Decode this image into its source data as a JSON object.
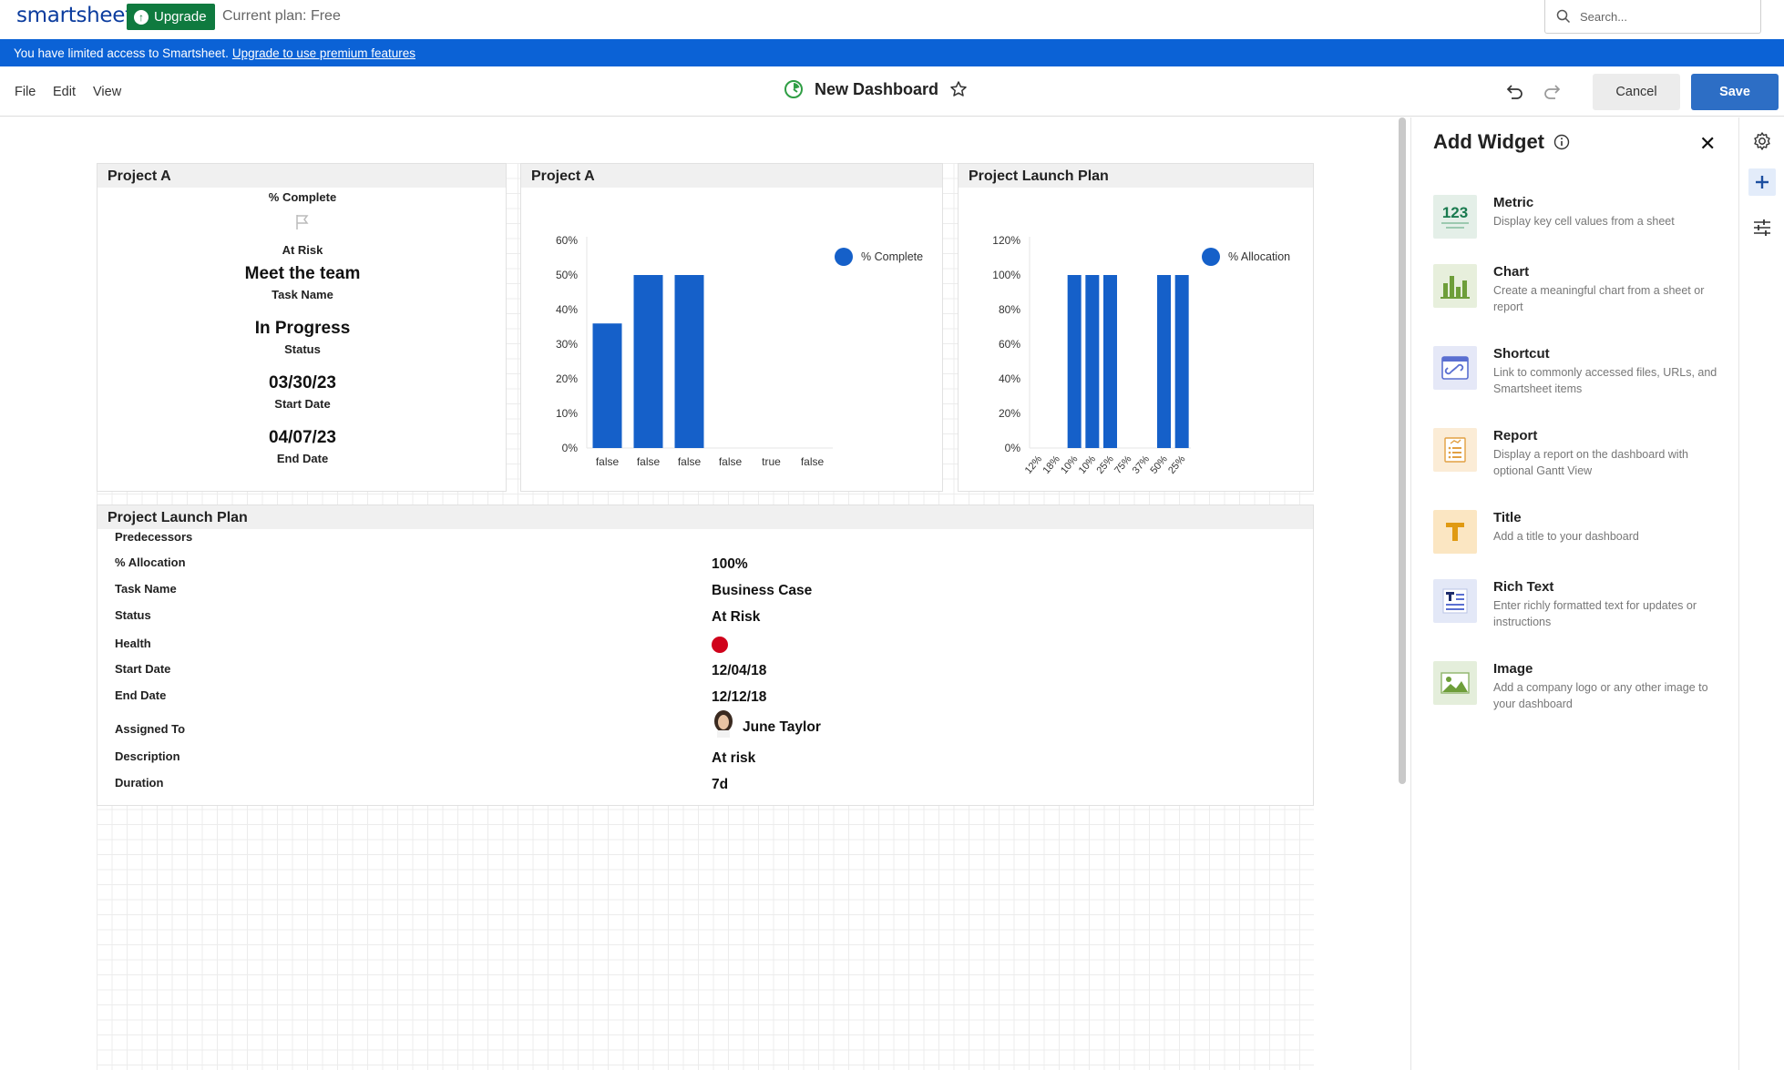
{
  "topbar": {
    "logo": "smartsheet",
    "upgrade_label": "Upgrade",
    "plan_text": "Current plan: Free",
    "search_placeholder": "Search..."
  },
  "banner": {
    "text": "You have limited access to Smartsheet.",
    "link": "Upgrade to use premium features",
    "color": "#0b62d6"
  },
  "menubar": {
    "items": [
      "File",
      "Edit",
      "View"
    ],
    "dashboard_title": "New Dashboard",
    "cancel_label": "Cancel",
    "save_label": "Save"
  },
  "widgets": {
    "metric": {
      "header": "Project A",
      "rows": [
        {
          "value": "",
          "label": "% Complete"
        },
        {
          "value": "",
          "label": "At Risk"
        },
        {
          "value": "Meet the team",
          "label": "Task Name"
        },
        {
          "value": "In Progress",
          "label": "Status"
        },
        {
          "value": "03/30/23",
          "label": "Start Date"
        },
        {
          "value": "04/07/23",
          "label": "End Date"
        }
      ]
    },
    "chart1": {
      "header": "Project A"
    },
    "chart2": {
      "header": "Project Launch Plan"
    },
    "row": {
      "header": "Project Launch Plan",
      "fields": [
        {
          "label": "Predecessors",
          "value": ""
        },
        {
          "label": "% Allocation",
          "value": "100%"
        },
        {
          "label": "Task Name",
          "value": "Business Case"
        },
        {
          "label": "Status",
          "value": "At Risk"
        },
        {
          "label": "Health",
          "value": ""
        },
        {
          "label": "Start Date",
          "value": "12/04/18"
        },
        {
          "label": "End Date",
          "value": "12/12/18"
        },
        {
          "label": "Assigned To",
          "value": "June Taylor"
        },
        {
          "label": "Description",
          "value": "At risk"
        },
        {
          "label": "Duration",
          "value": "7d"
        }
      ],
      "health_color": "#d0021b"
    }
  },
  "chart_data": [
    {
      "type": "bar",
      "categories": [
        "false",
        "false",
        "false",
        "false",
        "true",
        "false"
      ],
      "series": [
        {
          "name": "% Complete",
          "values": [
            36,
            50,
            50,
            0,
            0,
            0
          ]
        }
      ],
      "yticks": [
        "0%",
        "10%",
        "20%",
        "30%",
        "40%",
        "50%",
        "60%"
      ],
      "ylim": [
        0,
        60
      ],
      "legend": "top-right",
      "color": "#1560c9"
    },
    {
      "type": "bar",
      "categories": [
        "12%",
        "18%",
        "10%",
        "10%",
        "25%",
        "75%",
        "37%",
        "50%",
        "25%"
      ],
      "series": [
        {
          "name": "% Allocation",
          "values": [
            0,
            0,
            100,
            100,
            100,
            0,
            0,
            100,
            100
          ]
        }
      ],
      "yticks": [
        "0%",
        "20%",
        "40%",
        "60%",
        "80%",
        "100%",
        "120%"
      ],
      "ylim": [
        0,
        120
      ],
      "legend": "top-right",
      "color": "#1560c9"
    }
  ],
  "panel": {
    "title": "Add Widget",
    "items": [
      {
        "name": "Metric",
        "desc": "Display key cell values from a sheet",
        "icon": "metric-icon"
      },
      {
        "name": "Chart",
        "desc": "Create a meaningful chart from a sheet or report",
        "icon": "chart-icon"
      },
      {
        "name": "Shortcut",
        "desc": "Link to commonly accessed files, URLs, and Smartsheet items",
        "icon": "shortcut-icon"
      },
      {
        "name": "Report",
        "desc": "Display a report on the dashboard with optional Gantt View",
        "icon": "report-icon"
      },
      {
        "name": "Title",
        "desc": "Add a title to your dashboard",
        "icon": "title-icon"
      },
      {
        "name": "Rich Text",
        "desc": "Enter richly formatted text for updates or instructions",
        "icon": "rich-text-icon"
      },
      {
        "name": "Image",
        "desc": "Add a company logo or any other image to your dashboard",
        "icon": "image-icon"
      }
    ]
  }
}
